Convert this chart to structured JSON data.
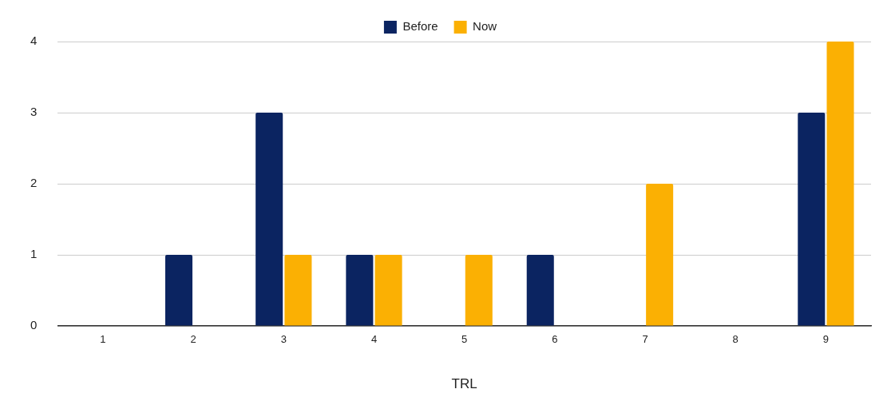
{
  "chart_data": {
    "type": "bar",
    "xlabel": "TRL",
    "categories": [
      "1",
      "2",
      "3",
      "4",
      "5",
      "6",
      "7",
      "8",
      "9"
    ],
    "series": [
      {
        "name": "Before",
        "color": "#0b2461",
        "values": [
          0,
          1,
          3,
          1,
          0,
          1,
          0,
          0,
          3
        ]
      },
      {
        "name": "Now",
        "color": "#fbb003",
        "values": [
          0,
          0,
          1,
          1,
          1,
          0,
          2,
          0,
          4
        ]
      }
    ],
    "ylim": [
      0,
      4
    ],
    "yticks": [
      0,
      1,
      2,
      3,
      4
    ],
    "grid": "y",
    "legend": "top"
  }
}
